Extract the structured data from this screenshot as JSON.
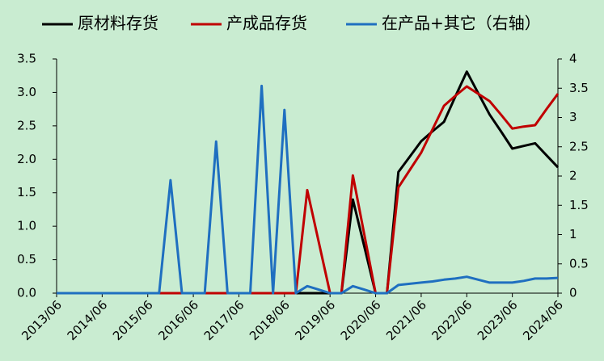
{
  "chart_data": {
    "type": "line",
    "categories": [
      "2013/06",
      null,
      null,
      null,
      "2014/06",
      null,
      null,
      null,
      "2015/06",
      null,
      null,
      null,
      "2016/06",
      null,
      null,
      null,
      "2017/06",
      null,
      null,
      null,
      "2018/06",
      null,
      null,
      null,
      "2019/06",
      null,
      null,
      null,
      "2020/06",
      null,
      null,
      null,
      "2021/06",
      null,
      null,
      null,
      "2022/06",
      null,
      null,
      null,
      "2023/06",
      null,
      null,
      null,
      "2024/06"
    ],
    "series": [
      {
        "name": "原材料存货",
        "color": "#000000",
        "values": [
          0,
          0,
          0,
          0,
          0,
          0,
          0,
          0,
          0,
          0,
          0,
          0,
          0,
          0,
          0,
          0,
          0,
          0,
          0,
          0,
          0,
          0,
          0,
          0,
          0,
          0,
          1.4,
          0.7,
          0,
          0,
          1.81,
          2.04,
          2.27,
          2.42,
          2.56,
          2.94,
          3.31,
          2.99,
          2.67,
          2.42,
          2.16,
          2.2,
          2.24,
          2.06,
          1.88
        ]
      },
      {
        "name": "产成品存货",
        "color": "#c00000",
        "values": [
          0,
          0,
          0,
          0,
          0,
          0,
          0,
          0,
          0,
          0,
          0,
          0,
          0,
          0,
          0,
          0,
          0,
          0,
          0,
          0,
          0,
          0,
          1.54,
          0.77,
          0,
          0,
          1.76,
          0.88,
          0,
          0,
          1.58,
          1.84,
          2.1,
          2.45,
          2.8,
          2.95,
          3.09,
          2.98,
          2.87,
          2.67,
          2.46,
          2.49,
          2.51,
          2.75,
          2.98
        ]
      },
      {
        "name": "在产品+其它（右轴）",
        "color": "#1f6fc0",
        "axis": "y2",
        "values": [
          0,
          0,
          0,
          0,
          0,
          0,
          0,
          0,
          0,
          0,
          1.93,
          0,
          0,
          0,
          2.59,
          0,
          0,
          0,
          3.54,
          0,
          3.13,
          0,
          0.12,
          0.06,
          0,
          0,
          0.12,
          0.06,
          0,
          0,
          0.14,
          0.16,
          0.18,
          0.2,
          0.23,
          0.25,
          0.28,
          0.23,
          0.18,
          0.18,
          0.18,
          0.21,
          0.25,
          0.25,
          0.26
        ]
      }
    ],
    "ylim": [
      0,
      3.5
    ],
    "yticks": [
      {
        "value": 0,
        "label": "0.0"
      },
      0.5,
      {
        "value": 1,
        "label": "1.0"
      },
      1.5,
      {
        "value": 2,
        "label": "2.0"
      },
      2.5,
      {
        "value": 3,
        "label": "3.0"
      },
      3.5
    ],
    "y2lim": [
      0,
      4
    ],
    "y2ticks": [
      0,
      0.5,
      1,
      1.5,
      2,
      2.5,
      3,
      3.5,
      4
    ],
    "legend": "top"
  }
}
